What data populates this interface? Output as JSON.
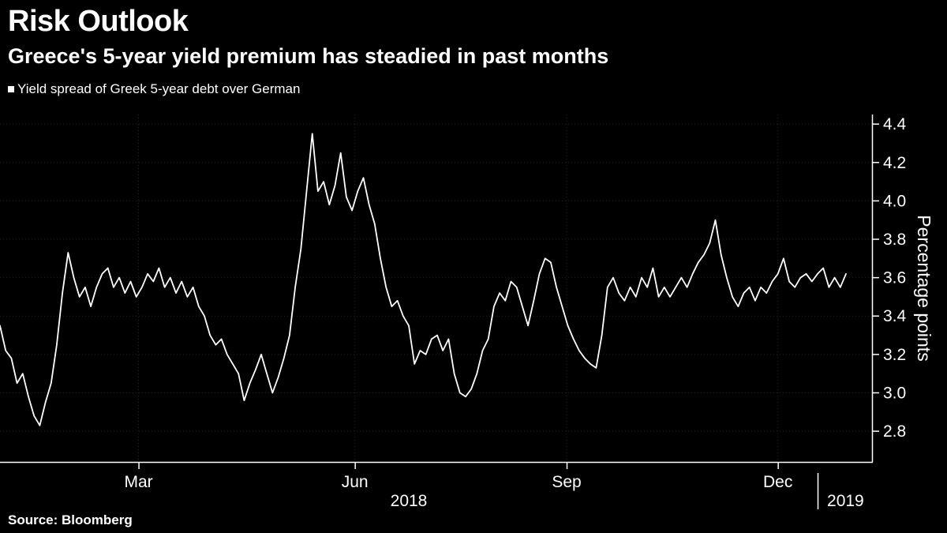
{
  "chart_data": {
    "type": "line",
    "title": "Risk Outlook",
    "subtitle": "Greece's 5-year yield premium has steadied in past months",
    "legend": "Yield spread of Greek 5-year debt over German",
    "source": "Source: Bloomberg",
    "ylabel": "Percentage points",
    "series_name": "Yield spread of Greek 5-year debt over German",
    "unit": "percentage points",
    "ylim": [
      2.64,
      4.45
    ],
    "y_ticks": [
      4.4,
      4.2,
      4.0,
      3.8,
      3.6,
      3.4,
      3.2,
      3.0,
      2.8
    ],
    "x_ticks": [
      {
        "label": "Mar",
        "index": 24.4
      },
      {
        "label": "Jun",
        "index": 62.5
      },
      {
        "label": "Sep",
        "index": 99.8
      },
      {
        "label": "Dec",
        "index": 137.0
      }
    ],
    "year_labels": {
      "left": "2018",
      "right": "2019",
      "divider_index": 144.0
    },
    "line_color": "#ffffff",
    "background_color": "#000000",
    "grid": true,
    "legend_position": "top-left",
    "values": [
      3.35,
      3.22,
      3.18,
      3.05,
      3.1,
      2.98,
      2.88,
      2.83,
      2.95,
      3.05,
      3.25,
      3.52,
      3.73,
      3.6,
      3.5,
      3.55,
      3.45,
      3.55,
      3.62,
      3.65,
      3.55,
      3.6,
      3.52,
      3.58,
      3.5,
      3.55,
      3.62,
      3.58,
      3.65,
      3.55,
      3.6,
      3.52,
      3.58,
      3.5,
      3.55,
      3.45,
      3.4,
      3.3,
      3.25,
      3.28,
      3.2,
      3.15,
      3.1,
      2.96,
      3.05,
      3.12,
      3.2,
      3.1,
      3.0,
      3.08,
      3.18,
      3.3,
      3.55,
      3.75,
      4.05,
      4.35,
      4.05,
      4.1,
      3.98,
      4.08,
      4.25,
      4.02,
      3.95,
      4.05,
      4.12,
      3.98,
      3.88,
      3.7,
      3.55,
      3.45,
      3.48,
      3.4,
      3.35,
      3.15,
      3.22,
      3.2,
      3.28,
      3.3,
      3.22,
      3.28,
      3.1,
      3.0,
      2.98,
      3.02,
      3.1,
      3.22,
      3.28,
      3.45,
      3.52,
      3.48,
      3.58,
      3.55,
      3.45,
      3.35,
      3.48,
      3.62,
      3.7,
      3.68,
      3.55,
      3.45,
      3.35,
      3.28,
      3.22,
      3.18,
      3.15,
      3.13,
      3.3,
      3.55,
      3.6,
      3.52,
      3.48,
      3.55,
      3.5,
      3.6,
      3.55,
      3.65,
      3.5,
      3.55,
      3.5,
      3.55,
      3.6,
      3.55,
      3.62,
      3.68,
      3.72,
      3.78,
      3.9,
      3.72,
      3.6,
      3.5,
      3.45,
      3.52,
      3.55,
      3.48,
      3.55,
      3.52,
      3.58,
      3.62,
      3.7,
      3.58,
      3.55,
      3.6,
      3.62,
      3.58,
      3.62,
      3.65,
      3.55,
      3.6,
      3.55,
      3.62
    ]
  }
}
